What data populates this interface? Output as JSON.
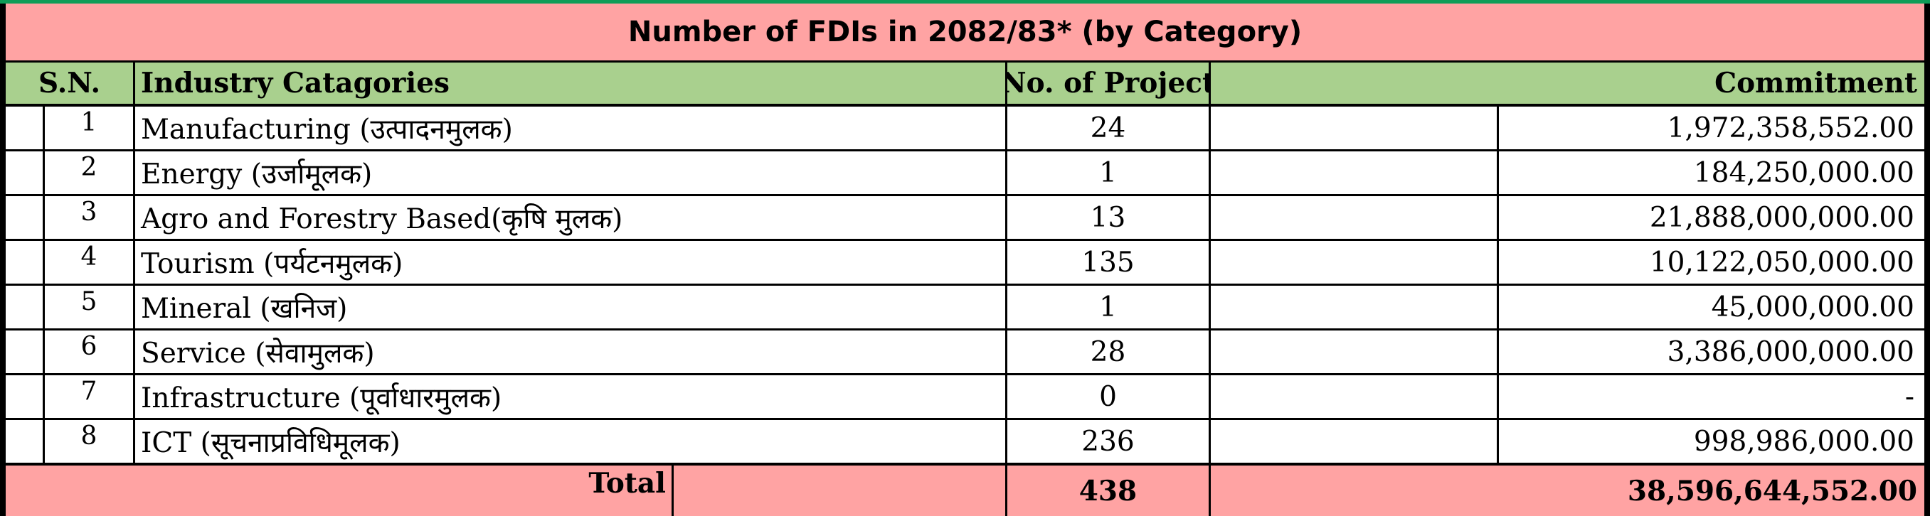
{
  "title": "Number of FDIs in 2082/83* (by Category)",
  "headers": {
    "sn": "S.N.",
    "category": "Industry Catagories",
    "projects": "No. of Project",
    "commitment": "Commitment"
  },
  "rows": [
    {
      "sn": "1",
      "category": "Manufacturing (उत्पादनमुलक)",
      "projects": "24",
      "commitment": "1,972,358,552.00"
    },
    {
      "sn": "2",
      "category": "Energy (उर्जामूलक)",
      "projects": "1",
      "commitment": "184,250,000.00"
    },
    {
      "sn": "3",
      "category": "Agro and Forestry Based(कृषि मुलक)",
      "projects": "13",
      "commitment": "21,888,000,000.00"
    },
    {
      "sn": "4",
      "category": "Tourism (पर्यटनमुलक)",
      "projects": "135",
      "commitment": "10,122,050,000.00"
    },
    {
      "sn": "5",
      "category": "Mineral (खनिज)",
      "projects": "1",
      "commitment": "45,000,000.00"
    },
    {
      "sn": "6",
      "category": "Service (सेवामुलक)",
      "projects": "28",
      "commitment": "3,386,000,000.00"
    },
    {
      "sn": "7",
      "category": "Infrastructure (पूर्वाधारमुलक)",
      "projects": "0",
      "commitment": "-"
    },
    {
      "sn": "8",
      "category": "ICT (सूचनाप्रविधिमूलक)",
      "projects": "236",
      "commitment": "998,986,000.00"
    }
  ],
  "total": {
    "label": "Total",
    "projects": "438",
    "commitment": "38,596,644,552.00"
  }
}
